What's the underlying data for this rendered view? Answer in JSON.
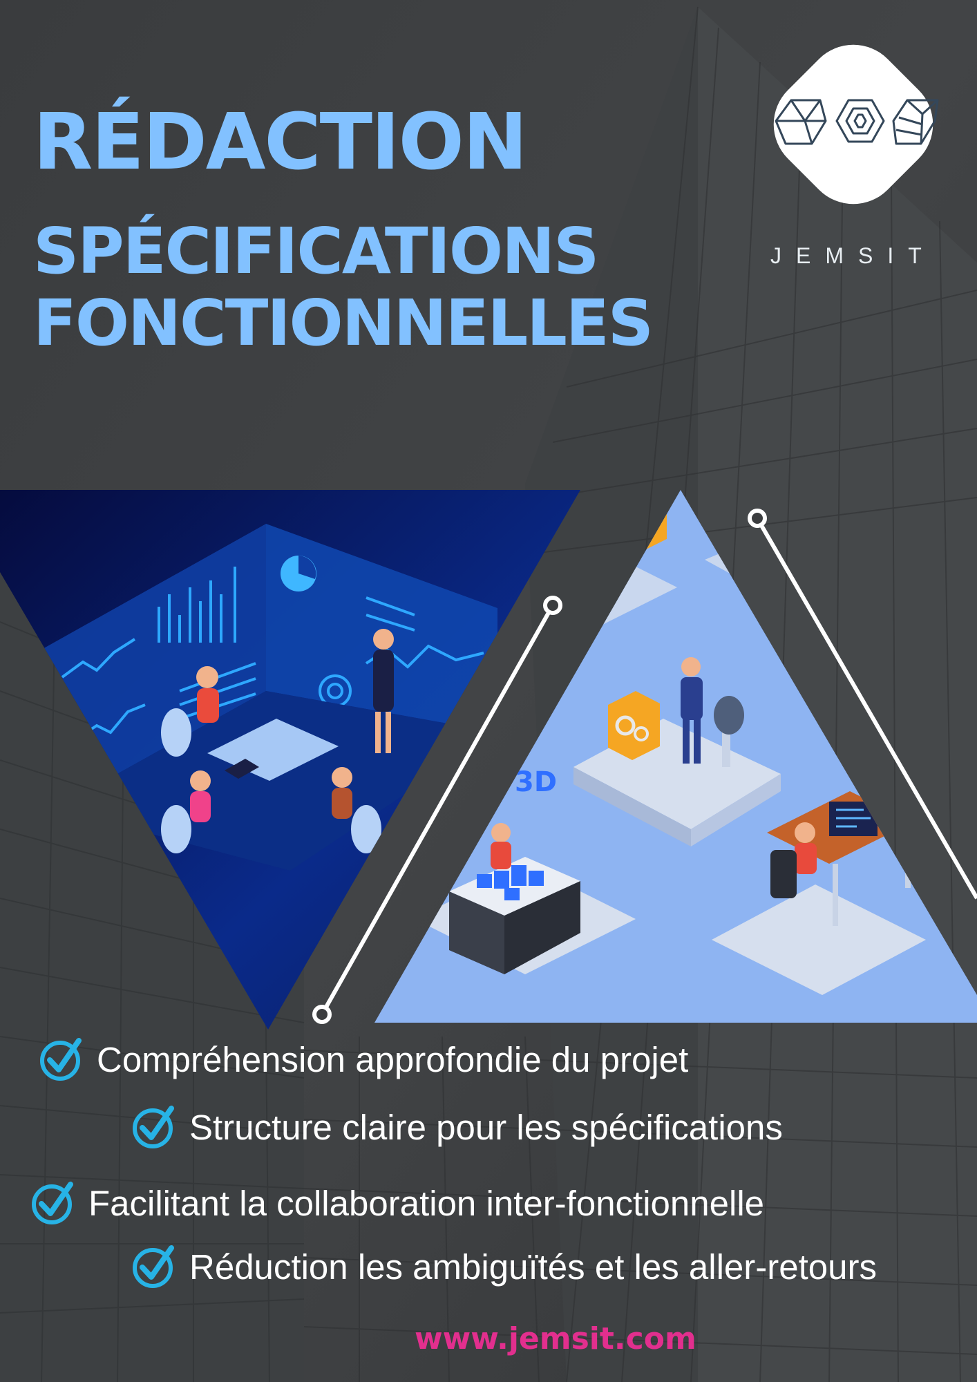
{
  "header": {
    "title_line1": "RÉDACTION",
    "title_line2": "SPÉCIFICATIONS",
    "title_line3": "FONCTIONNELLES"
  },
  "brand": {
    "name": "JEMSIT",
    "logo_icon": "geometric-cubes-logo-icon",
    "website": "www.jemsit.com"
  },
  "illustrations": {
    "left_icon": "team-meeting-dashboard-illustration",
    "right_icon": "isometric-workstations-illustration",
    "badge_3d": "3D"
  },
  "features": [
    {
      "icon": "checkmark-icon",
      "text": "Compréhension approfondie du projet"
    },
    {
      "icon": "checkmark-icon",
      "text": "Structure claire pour les spécifications"
    },
    {
      "icon": "checkmark-icon",
      "text": "Facilitant la collaboration inter-fonctionnelle"
    },
    {
      "icon": "checkmark-icon",
      "text": "Réduction les ambiguïtés et les aller-retours"
    }
  ],
  "colors": {
    "background": "#3b3d3f",
    "title": "#82c1ff",
    "check": "#27b3e6",
    "website": "#e22f8e",
    "light_blue_panel": "#8eb4f2",
    "dark_blue_panel": "#0a1a6a"
  }
}
